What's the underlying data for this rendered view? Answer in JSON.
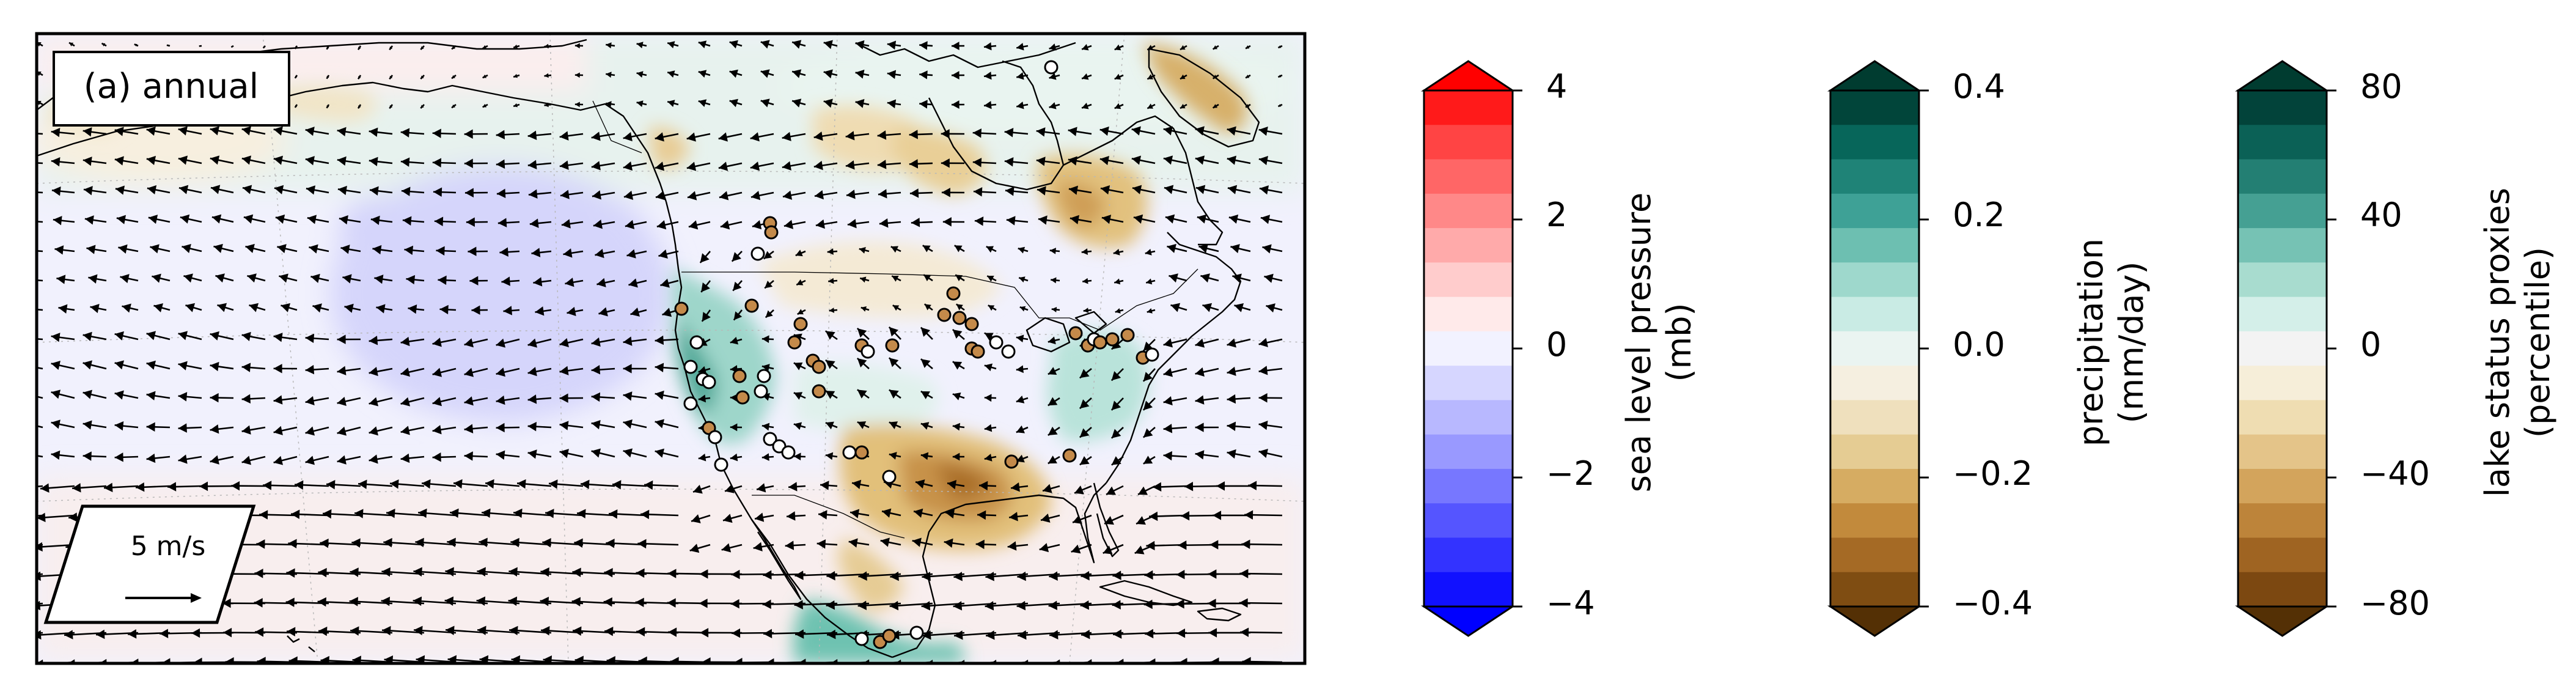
{
  "map": {
    "panel_label": "(a) annual",
    "scale_label": "5 m/s",
    "colors": {
      "land_outline": "#000000",
      "wind_arrow": "#000000",
      "proxy_wet": "#c48a4a",
      "proxy_dry": "#ffffff"
    }
  },
  "colorbars": [
    {
      "id": "slp",
      "label_lines": [
        "sea level pressure",
        "(mb)"
      ],
      "ticks": [
        "4",
        "2",
        "0",
        "−2",
        "−4"
      ],
      "colors": [
        "#ff1a1a",
        "#ff4444",
        "#ff6666",
        "#ff8888",
        "#ffaaaa",
        "#ffcccc",
        "#ffeaea",
        "#f2f2ff",
        "#d6d6ff",
        "#b8b8ff",
        "#9999ff",
        "#7777ff",
        "#5555ff",
        "#3333ff",
        "#1111ff"
      ],
      "over_color": "#ff0000",
      "under_color": "#0000ff"
    },
    {
      "id": "precip",
      "label_lines": [
        "precipitation",
        "(mm/day)"
      ],
      "ticks": [
        "0.4",
        "0.2",
        "0.0",
        "−0.2",
        "−0.4"
      ],
      "colors": [
        "#01453a",
        "#07665a",
        "#1f8377",
        "#3ea196",
        "#6dbfb1",
        "#9ed8cc",
        "#c9ebe4",
        "#eaf4f1",
        "#f5efe0",
        "#efe0bd",
        "#e5cc93",
        "#d6ac62",
        "#c28a3c",
        "#a56a25",
        "#7f4d12"
      ],
      "over_color": "#003c30",
      "under_color": "#543005"
    },
    {
      "id": "lake",
      "label_lines": [
        "lake status proxies",
        "(percentile)"
      ],
      "ticks": [
        "80",
        "40",
        "0",
        "−40",
        "−80"
      ],
      "colors": [
        "#02433a",
        "#0b6156",
        "#237f73",
        "#45a093",
        "#76c2b4",
        "#a8dccf",
        "#d4efe9",
        "#f3f3f3",
        "#f6eed9",
        "#efddb2",
        "#e4c489",
        "#d3a45c",
        "#bd843a",
        "#9f6422",
        "#7c4811"
      ],
      "over_color": "#003c30",
      "under_color": "#543005"
    }
  ]
}
